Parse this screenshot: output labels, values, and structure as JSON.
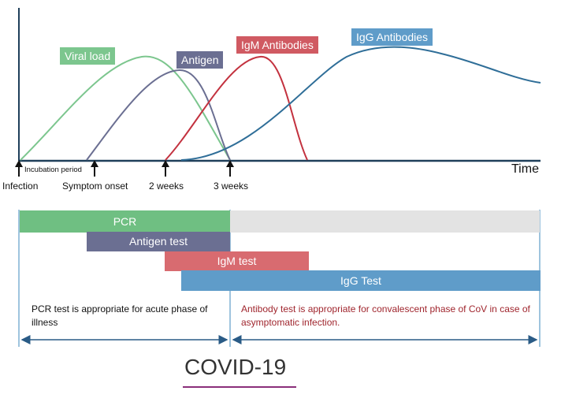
{
  "colors": {
    "viral_load": "#7cc68e",
    "antigen": "#6b6f92",
    "igm": "#c3323f",
    "igg": "#2f6e98",
    "pcr_bar": "#6fbf82",
    "antigen_bar": "#6b6f92",
    "igm_bar": "#d86b70",
    "igg_bar": "#5f9cc9",
    "grey_bar": "#e3e3e3",
    "arrow": "#2a5b86",
    "right_note": "#a0262e",
    "title_underline": "#8a2f7a"
  },
  "curve_labels": {
    "viral_load": "Viral load",
    "antigen": "Antigen",
    "igm": "IgM Antibodies",
    "igg": "IgG Antibodies"
  },
  "axis": {
    "time": "Time"
  },
  "timeline": {
    "incubation_period": "Incubation period",
    "infection": "Infection",
    "symptom_onset": "Symptom onset",
    "two_weeks": "2 weeks",
    "three_weeks": "3 weeks"
  },
  "tests": {
    "pcr": "PCR",
    "antigen": "Antigen test",
    "igm": "IgM test",
    "igg": "IgG Test"
  },
  "notes": {
    "left": "PCR test is appropriate for acute phase of illness",
    "right": "Antibody test is appropriate for convalescent phase of CoV in case of asymptomatic infection."
  },
  "title": "COVID-19"
}
